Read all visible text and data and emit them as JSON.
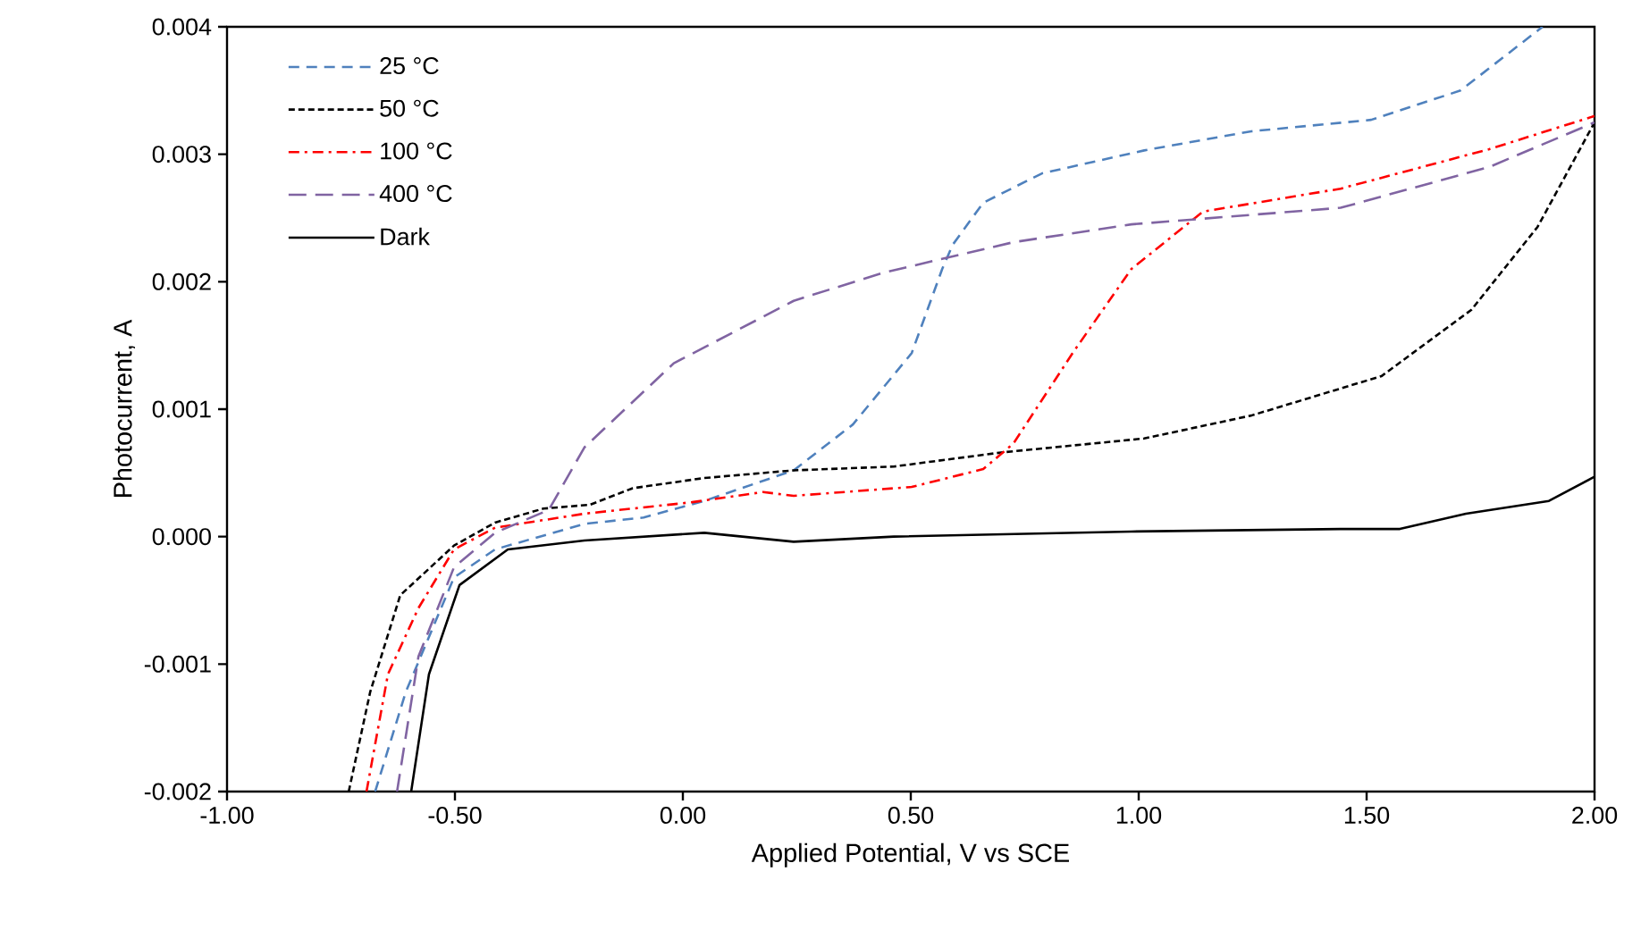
{
  "chart_data": {
    "type": "line",
    "xlabel": "Applied Potential, V vs SCE",
    "ylabel": "Photocurrent, A",
    "xlim": [
      -1,
      2
    ],
    "ylim": [
      -0.002,
      0.004
    ],
    "xticks": [
      {
        "value": -1,
        "label": "-1.00"
      },
      {
        "value": -0.5,
        "label": "-0.50"
      },
      {
        "value": 0,
        "label": "0.00"
      },
      {
        "value": 0.5,
        "label": "0.50"
      },
      {
        "value": 1,
        "label": "1.00"
      },
      {
        "value": 1.5,
        "label": "1.50"
      },
      {
        "value": 2,
        "label": "2.00"
      }
    ],
    "yticks": [
      {
        "value": -0.002,
        "label": "-0.002"
      },
      {
        "value": -0.001,
        "label": "-0.001"
      },
      {
        "value": 0,
        "label": "0.000"
      },
      {
        "value": 0.001,
        "label": "0.001"
      },
      {
        "value": 0.002,
        "label": "0.002"
      },
      {
        "value": 0.003,
        "label": "0.003"
      },
      {
        "value": 0.004,
        "label": "0.004"
      }
    ],
    "grid": false,
    "legend": "top left",
    "marker": "none",
    "series": [
      {
        "name": "25 °C",
        "color": "#4f81bd",
        "line_style": "dashed",
        "x": [
          -0.675,
          -0.608,
          -0.502,
          -0.412,
          -0.216,
          -0.086,
          0.047,
          0.243,
          0.373,
          0.502,
          0.569,
          0.592,
          0.659,
          0.788,
          1.012,
          1.247,
          1.51,
          1.706,
          1.886
        ],
        "values": [
          -0.002,
          -0.00122,
          -0.00032,
          -0.0001,
          0.0001,
          0.00015,
          0.00028,
          0.00052,
          0.00088,
          0.00144,
          0.0021,
          0.00229,
          0.00262,
          0.00285,
          0.00303,
          0.00318,
          0.00327,
          0.0035,
          0.004
        ]
      },
      {
        "name": "50 °C",
        "color": "#000000",
        "line_style": "densely dashed",
        "x": [
          -0.733,
          -0.686,
          -0.62,
          -0.502,
          -0.412,
          -0.306,
          -0.204,
          -0.11,
          0.047,
          0.243,
          0.463,
          0.698,
          1.012,
          1.247,
          1.533,
          1.73,
          1.875,
          2.0
        ],
        "values": [
          -0.002,
          -0.00122,
          -0.00046,
          -7e-05,
          0.00011,
          0.00022,
          0.00025,
          0.00038,
          0.00046,
          0.00052,
          0.00055,
          0.00066,
          0.00077,
          0.00095,
          0.00126,
          0.00178,
          0.00243,
          0.00325
        ]
      },
      {
        "name": "100 °C",
        "color": "#ff0000",
        "line_style": "dashdot",
        "x": [
          -0.694,
          -0.647,
          -0.58,
          -0.502,
          -0.412,
          -0.216,
          0.02,
          0.176,
          0.243,
          0.502,
          0.659,
          0.725,
          0.855,
          0.984,
          1.141,
          1.443,
          1.769,
          2.0
        ],
        "values": [
          -0.002,
          -0.00108,
          -0.00056,
          -0.0001,
          7e-05,
          0.00018,
          0.00027,
          0.00035,
          0.00032,
          0.00039,
          0.00053,
          0.00073,
          0.00144,
          0.0021,
          0.00255,
          0.00273,
          0.00304,
          0.0033
        ]
      },
      {
        "name": "400 °C",
        "color": "#8064a2",
        "line_style": "long dashed",
        "x": [
          -0.627,
          -0.58,
          -0.502,
          -0.412,
          -0.294,
          -0.216,
          -0.02,
          0.243,
          0.439,
          0.725,
          0.984,
          1.443,
          1.769,
          2.0
        ],
        "values": [
          -0.002,
          -0.00094,
          -0.00024,
          3e-05,
          0.00021,
          0.0007,
          0.00136,
          0.00185,
          0.00207,
          0.00231,
          0.00245,
          0.00258,
          0.0029,
          0.00325
        ]
      },
      {
        "name": "Dark",
        "color": "#000000",
        "line_style": "solid",
        "x": [
          -0.596,
          -0.557,
          -0.49,
          -0.384,
          -0.216,
          0.047,
          0.243,
          0.463,
          0.984,
          1.443,
          1.573,
          1.718,
          1.9,
          2.0
        ],
        "values": [
          -0.002,
          -0.00108,
          -0.00038,
          -0.0001,
          -3e-05,
          3e-05,
          -4e-05,
          0.0,
          4e-05,
          6e-05,
          6e-05,
          0.00018,
          0.00028,
          0.00047
        ]
      }
    ]
  }
}
